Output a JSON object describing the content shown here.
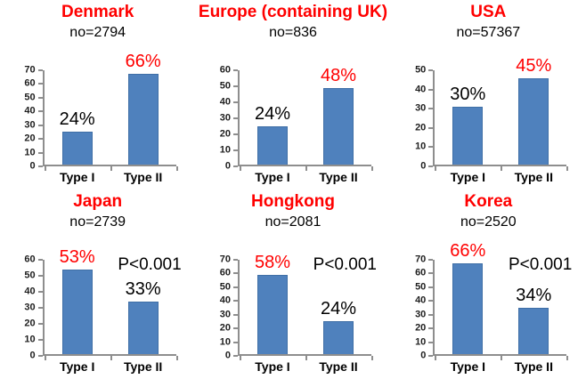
{
  "colors": {
    "bar_fill": "#4F81BD",
    "bar_border": "#3F6FA6",
    "axis_gray": "#8E8E8E",
    "title_red": "#FF0000",
    "label_black": "#000000"
  },
  "chart_data": [
    {
      "type": "bar",
      "title": "Denmark",
      "subtitle": "no=2794",
      "sample_size": 2794,
      "categories": [
        "Type I",
        "Type II"
      ],
      "values": [
        24,
        66
      ],
      "value_labels": [
        "24%",
        "66%"
      ],
      "label_colors": [
        "#000000",
        "#FF0000"
      ],
      "ylim": [
        0,
        70
      ],
      "ytick_step": 10,
      "annotation": "",
      "grid": false,
      "legend": "none"
    },
    {
      "type": "bar",
      "title": "Europe (containing UK)",
      "subtitle": "no=836",
      "sample_size": 836,
      "categories": [
        "Type I",
        "Type II"
      ],
      "values": [
        24,
        48
      ],
      "value_labels": [
        "24%",
        "48%"
      ],
      "label_colors": [
        "#000000",
        "#FF0000"
      ],
      "ylim": [
        0,
        60
      ],
      "ytick_step": 10,
      "annotation": "",
      "grid": false,
      "legend": "none"
    },
    {
      "type": "bar",
      "title": "USA",
      "subtitle": "no=57367",
      "sample_size": 57367,
      "categories": [
        "Type I",
        "Type II"
      ],
      "values": [
        30,
        45
      ],
      "value_labels": [
        "30%",
        "45%"
      ],
      "label_colors": [
        "#000000",
        "#FF0000"
      ],
      "ylim": [
        0,
        50
      ],
      "ytick_step": 10,
      "annotation": "",
      "grid": false,
      "legend": "none"
    },
    {
      "type": "bar",
      "title": "Japan",
      "subtitle": "no=2739",
      "sample_size": 2739,
      "categories": [
        "Type I",
        "Type II"
      ],
      "values": [
        53,
        33
      ],
      "value_labels": [
        "53%",
        "33%"
      ],
      "label_colors": [
        "#FF0000",
        "#000000"
      ],
      "ylim": [
        0,
        60
      ],
      "ytick_step": 10,
      "annotation": "P<0.001",
      "grid": false,
      "legend": "none"
    },
    {
      "type": "bar",
      "title": "Hongkong",
      "subtitle": "no=2081",
      "sample_size": 2081,
      "categories": [
        "Type I",
        "Type II"
      ],
      "values": [
        58,
        24
      ],
      "value_labels": [
        "58%",
        "24%"
      ],
      "label_colors": [
        "#FF0000",
        "#000000"
      ],
      "ylim": [
        0,
        70
      ],
      "ytick_step": 10,
      "annotation": "P<0.001",
      "grid": false,
      "legend": "none"
    },
    {
      "type": "bar",
      "title": "Korea",
      "subtitle": "no=2520",
      "sample_size": 2520,
      "categories": [
        "Type I",
        "Type II"
      ],
      "values": [
        66,
        34
      ],
      "value_labels": [
        "66%",
        "34%"
      ],
      "label_colors": [
        "#FF0000",
        "#000000"
      ],
      "ylim": [
        0,
        70
      ],
      "ytick_step": 10,
      "annotation": "P<0.001",
      "grid": false,
      "legend": "none"
    }
  ]
}
